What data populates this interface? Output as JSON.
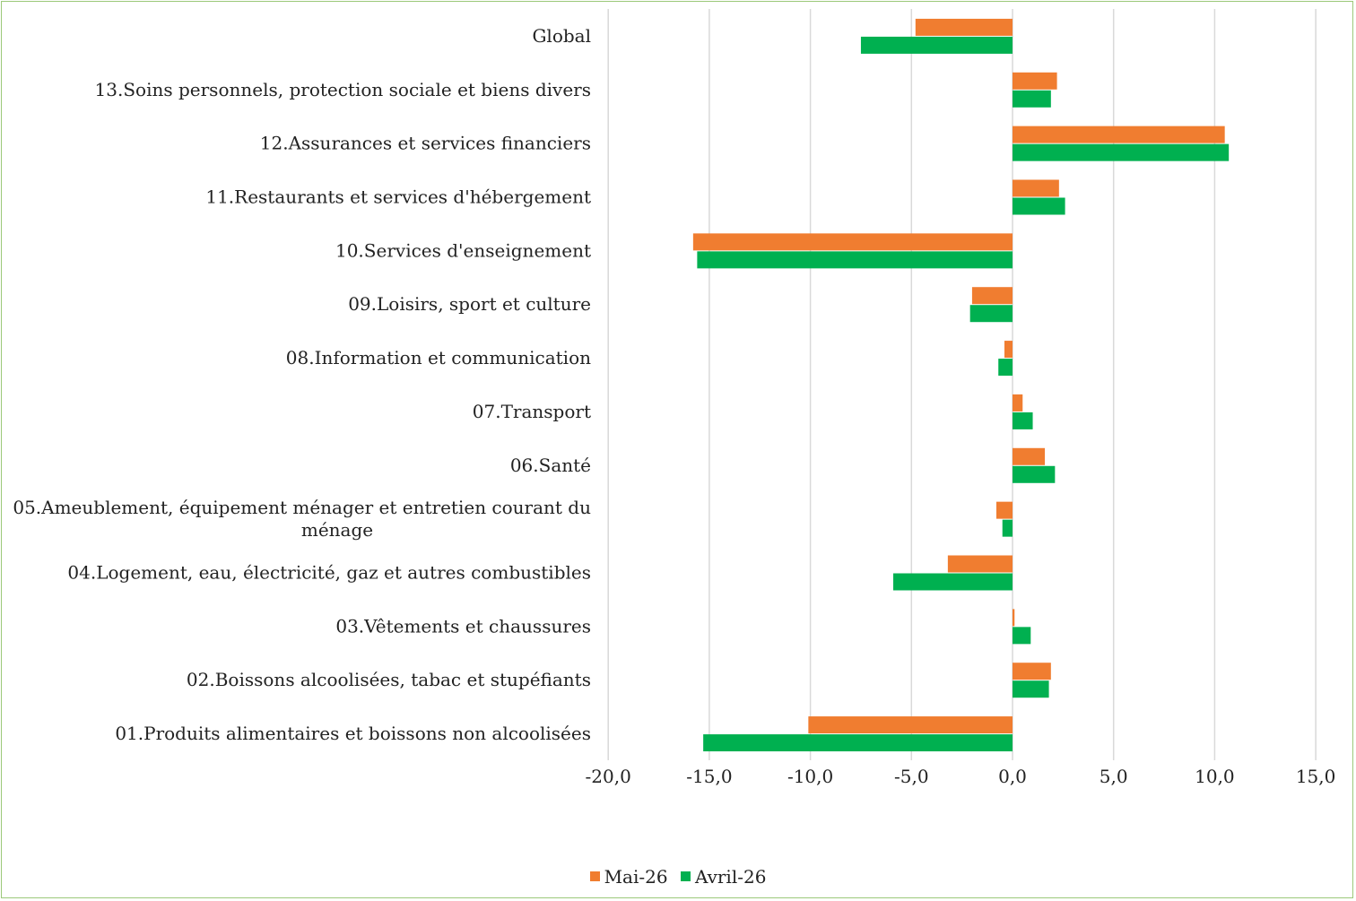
{
  "chart_data": {
    "type": "bar",
    "orientation": "horizontal",
    "categories": [
      "Global",
      "13.Soins personnels, protection sociale et biens divers",
      "12.Assurances et services financiers",
      "11.Restaurants et services d'hébergement",
      "10.Services d'enseignement",
      "09.Loisirs, sport et culture",
      "08.Information et communication",
      "07.Transport",
      "06.Santé",
      "05.Ameublement, équipement ménager et entretien courant du ménage",
      "04.Logement, eau, électricité, gaz et autres combustibles",
      "03.Vêtements et chaussures",
      "02.Boissons alcoolisées, tabac et stupéfiants",
      "01.Produits alimentaires et boissons non alcoolisées"
    ],
    "series": [
      {
        "name": "Mai-26",
        "color": "#f07d30",
        "values": [
          -4.8,
          2.2,
          10.5,
          2.3,
          -15.8,
          -2.0,
          -0.4,
          0.5,
          1.6,
          -0.8,
          -3.2,
          0.1,
          1.9,
          -10.1
        ]
      },
      {
        "name": "Avril-26",
        "color": "#00b050",
        "values": [
          -7.5,
          1.9,
          10.7,
          2.6,
          -15.6,
          -2.1,
          -0.7,
          1.0,
          2.1,
          -0.5,
          -5.9,
          0.9,
          1.8,
          -15.3
        ]
      }
    ],
    "xlim": [
      -20,
      15
    ],
    "xticks": [
      "-20,0",
      "-15,0",
      "-10,0",
      "-5,0",
      "0,0",
      "5,0",
      "10,0",
      "15,0"
    ],
    "grid": true,
    "legend_position": "bottom"
  }
}
